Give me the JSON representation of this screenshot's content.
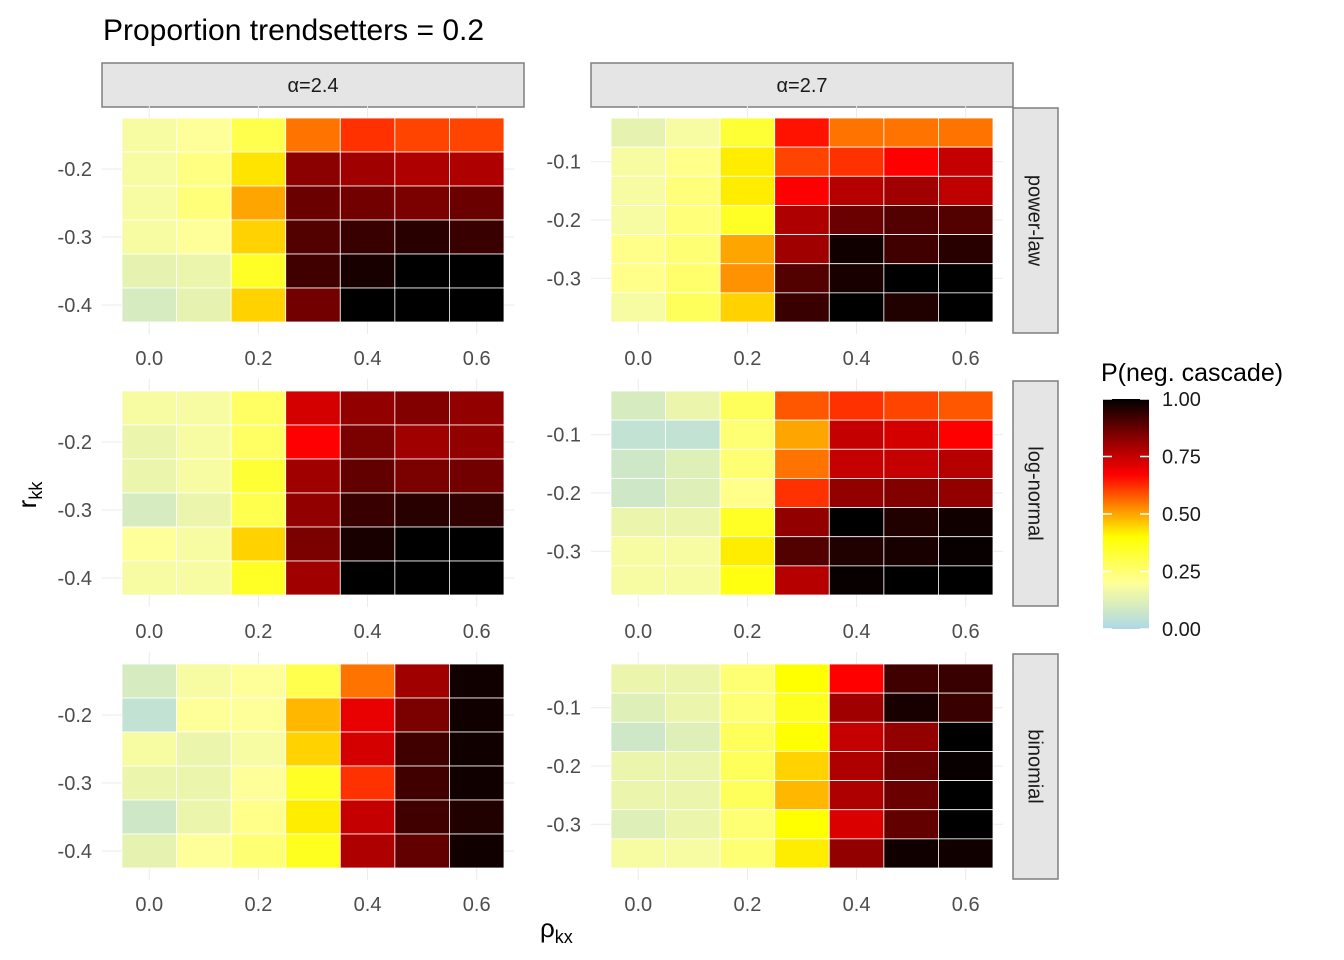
{
  "chart_data": {
    "type": "heatmap",
    "title": "Proportion trendsetters = 0.2",
    "xlabel": "ρ",
    "xlabel_sub": "kx",
    "ylabel": "r",
    "ylabel_sub": "kk",
    "x": [
      0.0,
      0.1,
      0.2,
      0.3,
      0.4,
      0.5,
      0.6
    ],
    "x_ticks": [
      0.0,
      0.2,
      0.4,
      0.6
    ],
    "x_tick_labels": [
      "0.0",
      "0.2",
      "0.4",
      "0.6"
    ],
    "columns": [
      {
        "label": "α=2.4",
        "y": [
          -0.15,
          -0.2,
          -0.25,
          -0.3,
          -0.35,
          -0.4
        ],
        "y_ticks": [
          -0.2,
          -0.3,
          -0.4
        ],
        "y_tick_labels": [
          "-0.2",
          "-0.3",
          "-0.4"
        ]
      },
      {
        "label": "α=2.7",
        "y": [
          -0.05,
          -0.1,
          -0.15,
          -0.2,
          -0.25,
          -0.3,
          -0.35
        ],
        "y_ticks": [
          -0.1,
          -0.2,
          -0.3
        ],
        "y_tick_labels": [
          "-0.1",
          "-0.2",
          "-0.3"
        ]
      }
    ],
    "rows": [
      {
        "label": "power-law"
      },
      {
        "label": "log-normal"
      },
      {
        "label": "binomial"
      }
    ],
    "panels": [
      {
        "row": 0,
        "col": 0,
        "values": [
          [
            0.18,
            0.2,
            0.3,
            0.55,
            0.62,
            0.6,
            0.6
          ],
          [
            0.18,
            0.23,
            0.43,
            0.83,
            0.8,
            0.78,
            0.78
          ],
          [
            0.18,
            0.24,
            0.5,
            0.87,
            0.86,
            0.85,
            0.87
          ],
          [
            0.18,
            0.2,
            0.45,
            0.9,
            0.93,
            0.95,
            0.93
          ],
          [
            0.14,
            0.15,
            0.35,
            0.92,
            0.97,
            1.0,
            1.0
          ],
          [
            0.1,
            0.14,
            0.45,
            0.86,
            1.0,
            1.0,
            1.0
          ]
        ]
      },
      {
        "row": 0,
        "col": 1,
        "values": [
          [
            0.14,
            0.18,
            0.33,
            0.65,
            0.55,
            0.55,
            0.55
          ],
          [
            0.18,
            0.22,
            0.42,
            0.6,
            0.62,
            0.67,
            0.75
          ],
          [
            0.18,
            0.24,
            0.42,
            0.67,
            0.77,
            0.8,
            0.76
          ],
          [
            0.18,
            0.24,
            0.35,
            0.78,
            0.87,
            0.9,
            0.9
          ],
          [
            0.22,
            0.25,
            0.5,
            0.8,
            0.98,
            0.92,
            0.95
          ],
          [
            0.22,
            0.26,
            0.52,
            0.9,
            0.97,
            1.0,
            1.0
          ],
          [
            0.18,
            0.28,
            0.45,
            0.93,
            1.0,
            0.96,
            1.0
          ]
        ]
      },
      {
        "row": 1,
        "col": 0,
        "values": [
          [
            0.18,
            0.18,
            0.27,
            0.73,
            0.82,
            0.84,
            0.82
          ],
          [
            0.15,
            0.18,
            0.27,
            0.67,
            0.85,
            0.8,
            0.82
          ],
          [
            0.15,
            0.18,
            0.33,
            0.8,
            0.88,
            0.85,
            0.86
          ],
          [
            0.1,
            0.15,
            0.3,
            0.82,
            0.93,
            0.95,
            0.94
          ],
          [
            0.2,
            0.18,
            0.45,
            0.85,
            0.97,
            1.0,
            1.0
          ],
          [
            0.18,
            0.18,
            0.35,
            0.8,
            1.0,
            1.0,
            1.0
          ]
        ]
      },
      {
        "row": 1,
        "col": 1,
        "values": [
          [
            0.1,
            0.15,
            0.28,
            0.58,
            0.62,
            0.6,
            0.58
          ],
          [
            0.05,
            0.05,
            0.25,
            0.5,
            0.75,
            0.73,
            0.67
          ],
          [
            0.08,
            0.12,
            0.25,
            0.55,
            0.75,
            0.75,
            0.77
          ],
          [
            0.08,
            0.12,
            0.22,
            0.62,
            0.82,
            0.84,
            0.82
          ],
          [
            0.15,
            0.15,
            0.35,
            0.82,
            1.0,
            0.96,
            0.98
          ],
          [
            0.18,
            0.18,
            0.42,
            0.9,
            0.96,
            0.97,
            0.99
          ],
          [
            0.18,
            0.18,
            0.38,
            0.77,
            0.99,
            1.0,
            1.0
          ]
        ]
      },
      {
        "row": 2,
        "col": 0,
        "values": [
          [
            0.1,
            0.18,
            0.2,
            0.3,
            0.55,
            0.8,
            0.98
          ],
          [
            0.05,
            0.2,
            0.2,
            0.48,
            0.7,
            0.85,
            0.98
          ],
          [
            0.18,
            0.15,
            0.18,
            0.45,
            0.73,
            0.92,
            0.98
          ],
          [
            0.15,
            0.15,
            0.2,
            0.35,
            0.62,
            0.92,
            0.98
          ],
          [
            0.08,
            0.15,
            0.22,
            0.42,
            0.75,
            0.92,
            0.96
          ],
          [
            0.14,
            0.2,
            0.25,
            0.36,
            0.78,
            0.88,
            0.98
          ]
        ]
      },
      {
        "row": 2,
        "col": 1,
        "values": [
          [
            0.15,
            0.15,
            0.25,
            0.4,
            0.67,
            0.92,
            0.93
          ],
          [
            0.12,
            0.15,
            0.25,
            0.36,
            0.8,
            0.97,
            0.93
          ],
          [
            0.08,
            0.12,
            0.28,
            0.4,
            0.75,
            0.82,
            1.0
          ],
          [
            0.15,
            0.15,
            0.28,
            0.45,
            0.78,
            0.87,
            0.99
          ],
          [
            0.15,
            0.15,
            0.28,
            0.48,
            0.78,
            0.87,
            1.0
          ],
          [
            0.12,
            0.15,
            0.25,
            0.4,
            0.72,
            0.88,
            1.0
          ],
          [
            0.18,
            0.18,
            0.25,
            0.42,
            0.82,
            0.98,
            0.98
          ]
        ]
      }
    ],
    "legend": {
      "title": "P(neg. cascade)",
      "ticks": [
        0.0,
        0.25,
        0.5,
        0.75,
        1.0
      ],
      "tick_labels": [
        "0.00",
        "0.25",
        "0.50",
        "0.75",
        "1.00"
      ],
      "colors": [
        "#add8e6",
        "#ffff99",
        "#ffff00",
        "#ffa500",
        "#ff0000",
        "#8b0000",
        "#000000"
      ],
      "color_stops": [
        0.0,
        0.2,
        0.4,
        0.5,
        0.67,
        0.83,
        1.0
      ],
      "placement": "right"
    }
  }
}
